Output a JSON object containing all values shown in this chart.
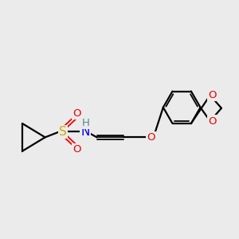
{
  "background_color": "#ebebeb",
  "atom_colors": {
    "C": "#000000",
    "N": "#0000ee",
    "O": "#ee0000",
    "S": "#ccaa00",
    "H": "#558888"
  },
  "line_color": "#000000",
  "line_width": 1.6,
  "figsize": [
    3.0,
    3.0
  ],
  "dpi": 100
}
